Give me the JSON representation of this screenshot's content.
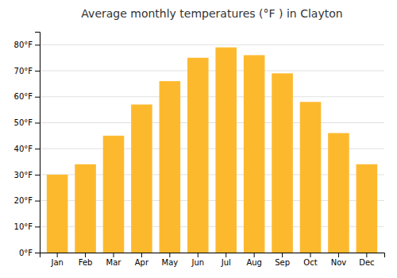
{
  "chart_data": {
    "type": "bar",
    "title": "Average monthly temperatures (°F ) in Clayton",
    "categories": [
      "Jan",
      "Feb",
      "Mar",
      "Apr",
      "May",
      "Jun",
      "Jul",
      "Aug",
      "Sep",
      "Oct",
      "Nov",
      "Dec"
    ],
    "values": [
      30,
      34,
      45,
      57,
      66,
      75,
      79,
      76,
      69,
      58,
      46,
      34
    ],
    "color": "#FDB92E",
    "ylim": [
      0,
      85
    ],
    "yticks": [
      {
        "value": 0,
        "label": "0°F"
      },
      {
        "value": 10,
        "label": "10°F"
      },
      {
        "value": 20,
        "label": "20°F"
      },
      {
        "value": 30,
        "label": "30°F"
      },
      {
        "value": 40,
        "label": "40°F"
      },
      {
        "value": 50,
        "label": "50°F"
      },
      {
        "value": 60,
        "label": "60°F"
      },
      {
        "value": 70,
        "label": "70°F"
      },
      {
        "value": 80,
        "label": "80°F"
      }
    ],
    "grid": true
  }
}
